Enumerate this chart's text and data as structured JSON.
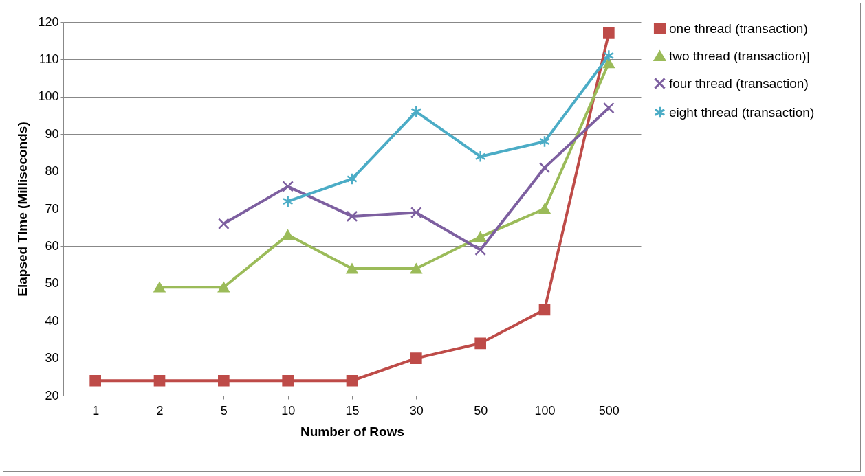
{
  "chart_data": {
    "type": "line",
    "xlabel": "Number of Rows",
    "ylabel": "Elapsed TIme (Milliseconds)",
    "categories": [
      "1",
      "2",
      "5",
      "10",
      "15",
      "30",
      "50",
      "100",
      "500"
    ],
    "series": [
      {
        "name": "one thread (transaction)",
        "color": "#be4b48",
        "marker": "square",
        "values": [
          24,
          24,
          24,
          24,
          24,
          30,
          34,
          43,
          117
        ]
      },
      {
        "name": "two thread (transaction)]",
        "color": "#9bbb59",
        "marker": "triangle",
        "values": [
          null,
          49,
          49,
          63,
          54,
          54,
          62.5,
          70,
          109
        ]
      },
      {
        "name": "four thread (transaction)",
        "color": "#7d5fa0",
        "marker": "cross",
        "values": [
          null,
          null,
          66,
          76,
          68,
          69,
          59,
          81,
          97
        ]
      },
      {
        "name": "eight thread (transaction)",
        "color": "#4bacc6",
        "marker": "cross",
        "values": [
          null,
          null,
          null,
          72,
          78,
          96,
          84,
          88,
          111
        ]
      }
    ],
    "ylim": [
      20,
      120
    ],
    "yticks": [
      20,
      30,
      40,
      50,
      60,
      70,
      80,
      90,
      100,
      110,
      120
    ],
    "grid": "y",
    "legend": "right"
  }
}
